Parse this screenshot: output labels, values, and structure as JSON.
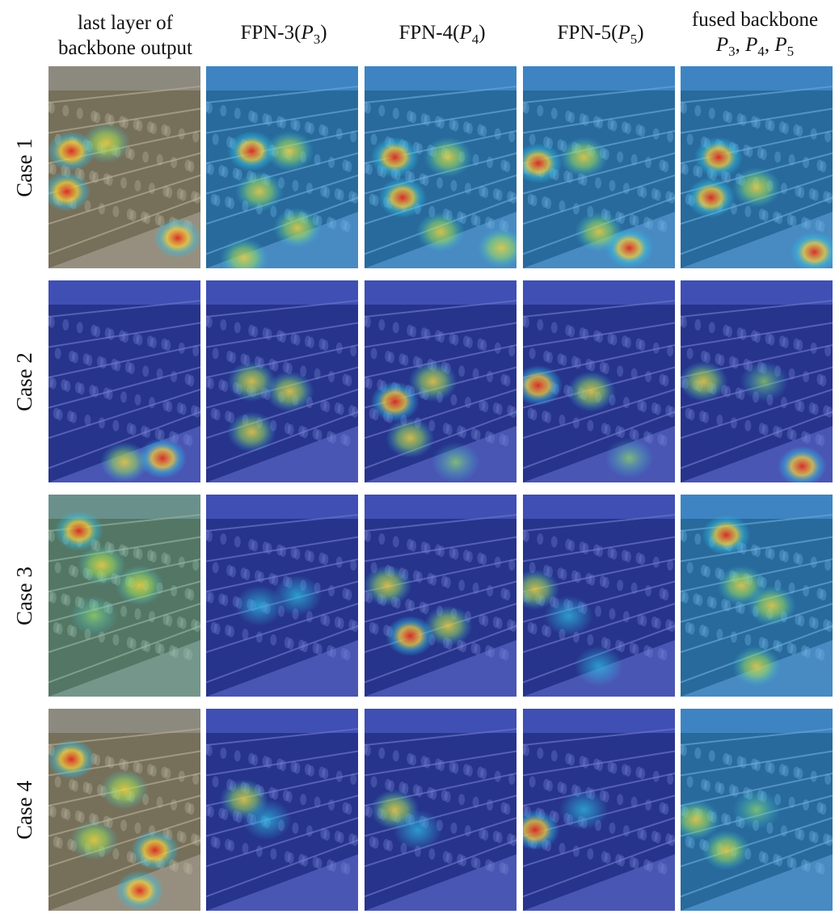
{
  "columns": [
    {
      "line1": "last layer of",
      "line2": "backbone output"
    },
    {
      "main": "FPN-3(",
      "var": "P",
      "sub": "3",
      "close": ")"
    },
    {
      "main": "FPN-4(",
      "var": "P",
      "sub": "4",
      "close": ")"
    },
    {
      "main": "FPN-5(",
      "var": "P",
      "sub": "5",
      "close": ")"
    },
    {
      "line1": "fused backbone",
      "var": "P",
      "subs": [
        "3",
        "4",
        "5"
      ]
    }
  ],
  "rows": [
    {
      "label": "Case 1"
    },
    {
      "label": "Case 2"
    },
    {
      "label": "Case 3"
    },
    {
      "label": "Case 4"
    }
  ],
  "heatmap": {
    "description_colors": {
      "cold": "#2a3cc8",
      "cool": "#2ec4e8",
      "mid": "#9be060",
      "warm": "#f0d040",
      "hot": "#e02820"
    },
    "panels": [
      [
        {
          "spots": [
            [
              0.15,
              0.42,
              "hot"
            ],
            [
              0.12,
              0.62,
              "hot"
            ],
            [
              0.38,
              0.38,
              "warm"
            ],
            [
              0.85,
              0.85,
              "hot"
            ]
          ],
          "wash": "warm"
        },
        {
          "spots": [
            [
              0.3,
              0.42,
              "hot"
            ],
            [
              0.55,
              0.42,
              "warm"
            ],
            [
              0.35,
              0.62,
              "warm"
            ],
            [
              0.6,
              0.8,
              "warm"
            ],
            [
              0.25,
              0.95,
              "warm"
            ]
          ],
          "wash": "cool"
        },
        {
          "spots": [
            [
              0.2,
              0.45,
              "hot"
            ],
            [
              0.25,
              0.65,
              "hot"
            ],
            [
              0.55,
              0.45,
              "warm"
            ],
            [
              0.5,
              0.82,
              "warm"
            ],
            [
              0.9,
              0.9,
              "warm"
            ]
          ],
          "wash": "cool"
        },
        {
          "spots": [
            [
              0.1,
              0.48,
              "hot"
            ],
            [
              0.4,
              0.45,
              "warm"
            ],
            [
              0.7,
              0.9,
              "hot"
            ],
            [
              0.5,
              0.82,
              "warm"
            ]
          ],
          "wash": "cool"
        },
        {
          "spots": [
            [
              0.25,
              0.45,
              "hot"
            ],
            [
              0.2,
              0.65,
              "hot"
            ],
            [
              0.5,
              0.6,
              "warm"
            ],
            [
              0.88,
              0.92,
              "hot"
            ]
          ],
          "wash": "cool"
        }
      ],
      [
        {
          "spots": [
            [
              0.75,
              0.88,
              "hot"
            ],
            [
              0.5,
              0.9,
              "warm"
            ]
          ],
          "wash": "cold"
        },
        {
          "spots": [
            [
              0.3,
              0.5,
              "warm"
            ],
            [
              0.55,
              0.55,
              "warm"
            ],
            [
              0.3,
              0.75,
              "warm"
            ]
          ],
          "wash": "cold"
        },
        {
          "spots": [
            [
              0.2,
              0.6,
              "hot"
            ],
            [
              0.45,
              0.5,
              "warm"
            ],
            [
              0.3,
              0.78,
              "warm"
            ],
            [
              0.6,
              0.9,
              "mid"
            ]
          ],
          "wash": "cold"
        },
        {
          "spots": [
            [
              0.1,
              0.52,
              "hot"
            ],
            [
              0.45,
              0.55,
              "warm"
            ],
            [
              0.7,
              0.88,
              "mid"
            ]
          ],
          "wash": "cold"
        },
        {
          "spots": [
            [
              0.15,
              0.5,
              "warm"
            ],
            [
              0.55,
              0.5,
              "mid"
            ],
            [
              0.8,
              0.92,
              "hot"
            ]
          ],
          "wash": "cold"
        }
      ],
      [
        {
          "spots": [
            [
              0.2,
              0.18,
              "hot"
            ],
            [
              0.35,
              0.35,
              "warm"
            ],
            [
              0.6,
              0.45,
              "warm"
            ],
            [
              0.3,
              0.6,
              "mid"
            ]
          ],
          "wash": "mid"
        },
        {
          "spots": [
            [
              0.35,
              0.55,
              "cool"
            ],
            [
              0.6,
              0.5,
              "cool"
            ]
          ],
          "wash": "cold"
        },
        {
          "spots": [
            [
              0.15,
              0.45,
              "warm"
            ],
            [
              0.3,
              0.7,
              "hot"
            ],
            [
              0.55,
              0.65,
              "warm"
            ]
          ],
          "wash": "cold"
        },
        {
          "spots": [
            [
              0.08,
              0.47,
              "warm"
            ],
            [
              0.3,
              0.6,
              "cool"
            ],
            [
              0.5,
              0.85,
              "cool"
            ]
          ],
          "wash": "cold"
        },
        {
          "spots": [
            [
              0.3,
              0.2,
              "hot"
            ],
            [
              0.4,
              0.45,
              "warm"
            ],
            [
              0.6,
              0.55,
              "warm"
            ],
            [
              0.5,
              0.85,
              "warm"
            ]
          ],
          "wash": "cool"
        }
      ],
      [
        {
          "spots": [
            [
              0.15,
              0.25,
              "hot"
            ],
            [
              0.5,
              0.4,
              "warm"
            ],
            [
              0.3,
              0.65,
              "warm"
            ],
            [
              0.7,
              0.7,
              "hot"
            ],
            [
              0.6,
              0.9,
              "hot"
            ]
          ],
          "wash": "warm"
        },
        {
          "spots": [
            [
              0.25,
              0.45,
              "warm"
            ],
            [
              0.4,
              0.55,
              "cool"
            ]
          ],
          "wash": "cold"
        },
        {
          "spots": [
            [
              0.2,
              0.5,
              "warm"
            ],
            [
              0.35,
              0.6,
              "cool"
            ]
          ],
          "wash": "cold"
        },
        {
          "spots": [
            [
              0.08,
              0.6,
              "hot"
            ],
            [
              0.4,
              0.5,
              "cool"
            ]
          ],
          "wash": "cold"
        },
        {
          "spots": [
            [
              0.1,
              0.55,
              "warm"
            ],
            [
              0.3,
              0.7,
              "warm"
            ],
            [
              0.5,
              0.5,
              "mid"
            ]
          ],
          "wash": "cool"
        }
      ]
    ]
  }
}
